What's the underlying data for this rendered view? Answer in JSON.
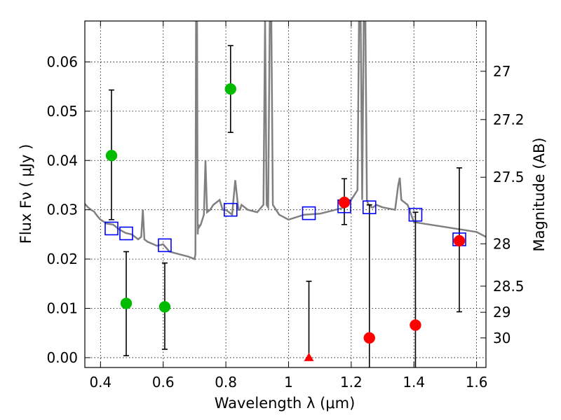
{
  "chart_data": {
    "type": "scatter",
    "xlabel": "Wavelength  λ (μm)",
    "ylabel": "Flux  Fν  ( μJy )",
    "ylabel_right": "Magnitude (AB)",
    "xlim": [
      0.35,
      1.63
    ],
    "ylim": [
      -0.002,
      0.0683
    ],
    "grid": true,
    "x_ticks": [
      0.4,
      0.6,
      0.8,
      1.0,
      1.2,
      1.4,
      1.6
    ],
    "x_tick_labels": [
      "0.4",
      "0.6",
      "0.8",
      "1",
      "1.2",
      "1.4",
      "1.6"
    ],
    "y_ticks": [
      0.0,
      0.01,
      0.02,
      0.03,
      0.04,
      0.05,
      0.06
    ],
    "y_tick_labels": [
      "0.00",
      "0.01",
      "0.02",
      "0.03",
      "0.04",
      "0.05",
      "0.06"
    ],
    "right_ticks": [
      {
        "label": "27",
        "flux": 0.0581
      },
      {
        "label": "27.2",
        "flux": 0.0483
      },
      {
        "label": "27.5",
        "flux": 0.0366
      },
      {
        "label": "28",
        "flux": 0.0231
      },
      {
        "label": "28.5",
        "flux": 0.0145
      },
      {
        "label": "29",
        "flux": 0.0092
      },
      {
        "label": "30",
        "flux": 0.004
      }
    ],
    "colors": {
      "model": "#808080",
      "green": "#00bb00",
      "red": "#ff0000",
      "blue": "#0000ff",
      "errorbar": "#000000"
    },
    "series": [
      {
        "name": "model spectrum",
        "kind": "line",
        "x": [
          0.35,
          0.36,
          0.37,
          0.38,
          0.39,
          0.4,
          0.42,
          0.44,
          0.46,
          0.48,
          0.5,
          0.52,
          0.53,
          0.535,
          0.54,
          0.55,
          0.58,
          0.6,
          0.62,
          0.65,
          0.68,
          0.7,
          0.703,
          0.705,
          0.708,
          0.71,
          0.712,
          0.715,
          0.72,
          0.73,
          0.735,
          0.74,
          0.75,
          0.76,
          0.78,
          0.79,
          0.8,
          0.82,
          0.83,
          0.84,
          0.845,
          0.85,
          0.87,
          0.9,
          0.92,
          0.925,
          0.93,
          0.935,
          0.94,
          0.945,
          0.95,
          0.955,
          0.96,
          0.97,
          1.0,
          1.05,
          1.1,
          1.15,
          1.18,
          1.2,
          1.22,
          1.225,
          1.23,
          1.235,
          1.24,
          1.245,
          1.25,
          1.255,
          1.26,
          1.265,
          1.27,
          1.28,
          1.3,
          1.34,
          1.35,
          1.355,
          1.36,
          1.38,
          1.4,
          1.45,
          1.5,
          1.55,
          1.6,
          1.63
        ],
        "y": [
          0.0312,
          0.0305,
          0.03,
          0.0296,
          0.0287,
          0.028,
          0.0272,
          0.027,
          0.026,
          0.0253,
          0.025,
          0.024,
          0.0245,
          0.03,
          0.024,
          0.0235,
          0.0227,
          0.023,
          0.0215,
          0.021,
          0.0205,
          0.02,
          0.021,
          0.069,
          0.069,
          0.025,
          0.027,
          0.0265,
          0.027,
          0.029,
          0.04,
          0.0295,
          0.03,
          0.031,
          0.032,
          0.03,
          0.03,
          0.029,
          0.036,
          0.03,
          0.03,
          0.031,
          0.03,
          0.0295,
          0.031,
          0.069,
          0.031,
          0.0305,
          0.069,
          0.069,
          0.031,
          0.0305,
          0.03,
          0.029,
          0.028,
          0.029,
          0.0292,
          0.03,
          0.0305,
          0.032,
          0.034,
          0.069,
          0.069,
          0.032,
          0.069,
          0.069,
          0.032,
          0.031,
          0.031,
          0.0305,
          0.0305,
          0.031,
          0.0305,
          0.03,
          0.035,
          0.0365,
          0.032,
          0.031,
          0.0275,
          0.027,
          0.0265,
          0.026,
          0.0255,
          0.0245
        ]
      },
      {
        "name": "green detections",
        "kind": "points",
        "marker": "circle",
        "points": [
          {
            "x": 0.435,
            "y": 0.041,
            "lo": 0.028,
            "hi": 0.0543
          },
          {
            "x": 0.482,
            "y": 0.011,
            "lo": 0.0004,
            "hi": 0.0215
          },
          {
            "x": 0.605,
            "y": 0.0103,
            "lo": 0.0017,
            "hi": 0.0192
          },
          {
            "x": 0.815,
            "y": 0.0545,
            "lo": 0.0457,
            "hi": 0.0633
          }
        ]
      },
      {
        "name": "red detections",
        "kind": "points",
        "marker": "circle",
        "points": [
          {
            "x": 1.178,
            "y": 0.0315,
            "lo": 0.027,
            "hi": 0.0363
          },
          {
            "x": 1.258,
            "y": 0.004,
            "lo": -0.003,
            "hi": 0.031
          },
          {
            "x": 1.405,
            "y": 0.0066,
            "lo": -0.003,
            "hi": 0.0295
          },
          {
            "x": 1.545,
            "y": 0.0237,
            "lo": 0.0093,
            "hi": 0.0385
          }
        ]
      },
      {
        "name": "red upper limit",
        "kind": "points",
        "marker": "triangle",
        "points": [
          {
            "x": 1.065,
            "y": 0.0,
            "lo": 0.0,
            "hi": 0.0155
          }
        ]
      },
      {
        "name": "model fluxes",
        "kind": "points",
        "marker": "square",
        "points": [
          {
            "x": 0.435,
            "y": 0.0262
          },
          {
            "x": 0.482,
            "y": 0.0252
          },
          {
            "x": 0.605,
            "y": 0.0228
          },
          {
            "x": 0.815,
            "y": 0.03
          },
          {
            "x": 1.065,
            "y": 0.0293
          },
          {
            "x": 1.178,
            "y": 0.0307
          },
          {
            "x": 1.258,
            "y": 0.0305
          },
          {
            "x": 1.405,
            "y": 0.029
          },
          {
            "x": 1.545,
            "y": 0.024
          }
        ]
      }
    ]
  }
}
